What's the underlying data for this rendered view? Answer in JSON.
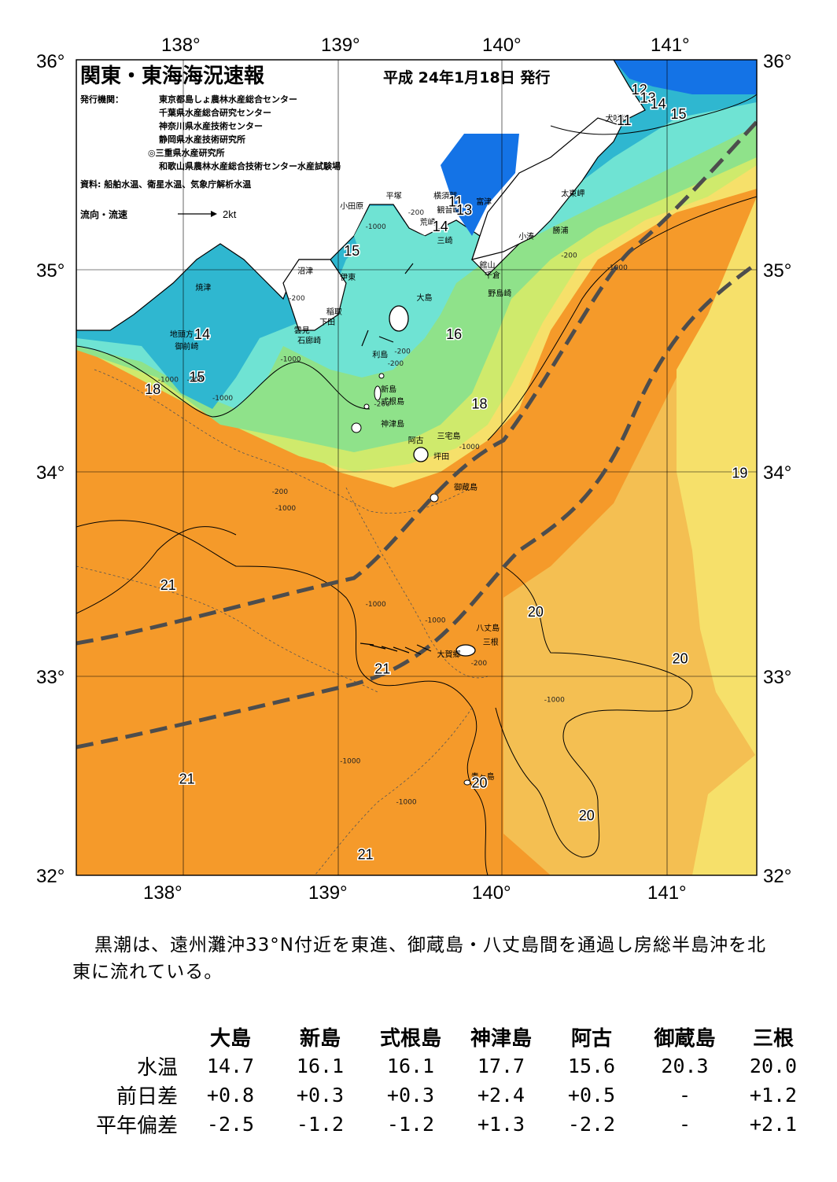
{
  "header": {
    "title": "関東・東海海況速報",
    "date": "平成 24年1月18日 発行",
    "issuer_label": "発行機関：",
    "issuers": [
      "東京都島しょ農林水産総合センター",
      "千葉県水産総合研究センター",
      "神奈川県水産技術センター",
      "静岡県水産技術研究所",
      "◎三重県水産研究所",
      "和歌山県農林水産総合技術センター水産試験場"
    ],
    "source": "資料: 船舶水温、衛星水温、気象庁解析水温",
    "flow_legend": "流向・流速",
    "flow_unit": "2kt"
  },
  "axes": {
    "lon_top": [
      "138°",
      "139°",
      "140°",
      "141°"
    ],
    "lon_bottom": [
      "138°",
      "139°",
      "140°",
      "141°"
    ],
    "lat_left": [
      "36°",
      "35°",
      "34°",
      "33°",
      "32°"
    ],
    "lat_right": [
      "36°",
      "35°",
      "34°",
      "33°",
      "32°"
    ],
    "lon_range": [
      137.5,
      141.5
    ],
    "lat_range": [
      32,
      36
    ]
  },
  "place_names": [
    {
      "name": "小田原",
      "lon": 139.05,
      "lat": 35.27
    },
    {
      "name": "平塚",
      "lon": 139.32,
      "lat": 35.32
    },
    {
      "name": "横須賀",
      "lon": 139.6,
      "lat": 35.32
    },
    {
      "name": "観音崎",
      "lon": 139.62,
      "lat": 35.25
    },
    {
      "name": "荒崎",
      "lon": 139.52,
      "lat": 35.19
    },
    {
      "name": "三崎",
      "lon": 139.62,
      "lat": 35.1
    },
    {
      "name": "富津",
      "lon": 139.85,
      "lat": 35.29
    },
    {
      "name": "太東岬",
      "lon": 140.35,
      "lat": 35.33
    },
    {
      "name": "勝浦",
      "lon": 140.3,
      "lat": 35.15
    },
    {
      "name": "小湊",
      "lon": 140.1,
      "lat": 35.12
    },
    {
      "name": "館山",
      "lon": 139.87,
      "lat": 34.98
    },
    {
      "name": "千倉",
      "lon": 139.9,
      "lat": 34.93
    },
    {
      "name": "野島崎",
      "lon": 139.92,
      "lat": 34.84
    },
    {
      "name": "犬吠埼",
      "lon": 140.61,
      "lat": 35.7
    },
    {
      "name": "沼津",
      "lon": 138.8,
      "lat": 34.95
    },
    {
      "name": "伊東",
      "lon": 139.05,
      "lat": 34.92
    },
    {
      "name": "焼津",
      "lon": 138.2,
      "lat": 34.87
    },
    {
      "name": "稲取",
      "lon": 138.97,
      "lat": 34.75
    },
    {
      "name": "下田",
      "lon": 138.93,
      "lat": 34.7
    },
    {
      "name": "雲見",
      "lon": 138.78,
      "lat": 34.66
    },
    {
      "name": "石廊崎",
      "lon": 138.8,
      "lat": 34.61
    },
    {
      "name": "地頭方",
      "lon": 138.05,
      "lat": 34.64
    },
    {
      "name": "御前崎",
      "lon": 138.08,
      "lat": 34.58
    },
    {
      "name": "大島",
      "lon": 139.5,
      "lat": 34.82
    },
    {
      "name": "利島",
      "lon": 139.24,
      "lat": 34.54
    },
    {
      "name": "新島",
      "lon": 139.29,
      "lat": 34.37
    },
    {
      "name": "式根島",
      "lon": 139.29,
      "lat": 34.31
    },
    {
      "name": "神津島",
      "lon": 139.29,
      "lat": 34.2
    },
    {
      "name": "三宅島",
      "lon": 139.62,
      "lat": 34.14
    },
    {
      "name": "阿古",
      "lon": 139.45,
      "lat": 34.12
    },
    {
      "name": "坪田",
      "lon": 139.6,
      "lat": 34.04
    },
    {
      "name": "御蔵島",
      "lon": 139.72,
      "lat": 33.89
    },
    {
      "name": "八丈島",
      "lon": 139.85,
      "lat": 33.2
    },
    {
      "name": "三根",
      "lon": 139.89,
      "lat": 33.13
    },
    {
      "name": "大賀郷",
      "lon": 139.62,
      "lat": 33.07
    },
    {
      "name": "青ヶ島",
      "lon": 139.82,
      "lat": 32.47
    }
  ],
  "isotherm_labels": [
    {
      "text": "12",
      "lon": 140.81,
      "lat": 35.83
    },
    {
      "text": "13",
      "lon": 140.86,
      "lat": 35.79
    },
    {
      "text": "14",
      "lon": 140.92,
      "lat": 35.76
    },
    {
      "text": "15",
      "lon": 141.04,
      "lat": 35.71
    },
    {
      "text": "11",
      "lon": 140.72,
      "lat": 35.68
    },
    {
      "text": "11",
      "lon": 139.73,
      "lat": 35.28
    },
    {
      "text": "13",
      "lon": 139.78,
      "lat": 35.24
    },
    {
      "text": "14",
      "lon": 139.64,
      "lat": 35.16
    },
    {
      "text": "15",
      "lon": 139.12,
      "lat": 35.04
    },
    {
      "text": "14",
      "lon": 138.24,
      "lat": 34.63
    },
    {
      "text": "16",
      "lon": 139.72,
      "lat": 34.63
    },
    {
      "text": "15",
      "lon": 138.21,
      "lat": 34.42
    },
    {
      "text": "18",
      "lon": 137.95,
      "lat": 34.36
    },
    {
      "text": "18",
      "lon": 139.87,
      "lat": 34.29
    },
    {
      "text": "19",
      "lon": 141.4,
      "lat": 33.95
    },
    {
      "text": "21",
      "lon": 138.04,
      "lat": 33.4
    },
    {
      "text": "20",
      "lon": 140.2,
      "lat": 33.27
    },
    {
      "text": "20",
      "lon": 141.05,
      "lat": 33.04
    },
    {
      "text": "21",
      "lon": 139.3,
      "lat": 32.99
    },
    {
      "text": "21",
      "lon": 138.15,
      "lat": 32.45
    },
    {
      "text": "20",
      "lon": 139.87,
      "lat": 32.43
    },
    {
      "text": "20",
      "lon": 140.5,
      "lat": 32.27
    },
    {
      "text": "21",
      "lon": 139.2,
      "lat": 32.08
    }
  ],
  "depth_labels": [
    {
      "text": "-200",
      "lon": 139.45,
      "lat": 35.24
    },
    {
      "text": "-1000",
      "lon": 139.2,
      "lat": 35.17
    },
    {
      "text": "-200",
      "lon": 140.35,
      "lat": 35.03
    },
    {
      "text": "-1000",
      "lon": 140.62,
      "lat": 34.97
    },
    {
      "text": "-200",
      "lon": 138.75,
      "lat": 34.82
    },
    {
      "text": "-200",
      "lon": 139.37,
      "lat": 34.56
    },
    {
      "text": "-200",
      "lon": 139.33,
      "lat": 34.5
    },
    {
      "text": "-1000",
      "lon": 138.7,
      "lat": 34.52
    },
    {
      "text": "-1000",
      "lon": 137.98,
      "lat": 34.42
    },
    {
      "text": "-200",
      "lon": 138.15,
      "lat": 34.42
    },
    {
      "text": "-1000",
      "lon": 138.3,
      "lat": 34.33
    },
    {
      "text": "-200",
      "lon": 139.25,
      "lat": 34.3
    },
    {
      "text": "-1000",
      "lon": 139.75,
      "lat": 34.09
    },
    {
      "text": "-200",
      "lon": 138.65,
      "lat": 33.87
    },
    {
      "text": "-1000",
      "lon": 138.67,
      "lat": 33.79
    },
    {
      "text": "-1000",
      "lon": 139.2,
      "lat": 33.32
    },
    {
      "text": "-1000",
      "lon": 139.55,
      "lat": 33.24
    },
    {
      "text": "-200",
      "lon": 139.82,
      "lat": 33.03
    },
    {
      "text": "-1000",
      "lon": 140.25,
      "lat": 32.85
    },
    {
      "text": "-1000",
      "lon": 139.05,
      "lat": 32.55
    },
    {
      "text": "-1000",
      "lon": 139.38,
      "lat": 32.35
    }
  ],
  "summary": "黒潮は、遠州灘沖33°N付近を東進、御蔵島・八丈島間を通過し房総半島沖を北東に流れている。",
  "table": {
    "columns": [
      "大島",
      "新島",
      "式根島",
      "神津島",
      "阿古",
      "御蔵島",
      "三根"
    ],
    "rows": [
      {
        "label": "水温",
        "values": [
          "14.7",
          "16.1",
          "16.1",
          "17.7",
          "15.6",
          "20.3",
          "20.0"
        ]
      },
      {
        "label": "前日差",
        "values": [
          "+0.8",
          "+0.3",
          "+0.3",
          "+2.4",
          "+0.5",
          "-",
          "+1.2"
        ]
      },
      {
        "label": "平年偏差",
        "values": [
          "-2.5",
          "-1.2",
          "-1.2",
          "+1.3",
          "-2.2",
          "-",
          "+2.1"
        ]
      }
    ]
  },
  "colors": {
    "water_coldest": "#1473e6",
    "water_cold": "#2fb7d0",
    "water_cool": "#6fe3d3",
    "water_mild": "#8fe28a",
    "water_warmish": "#cfea6c",
    "water_warm": "#f6e06a",
    "water_warmer": "#f4bf52",
    "water_warmest": "#f59a2a",
    "kuroshio_path": "#4d4d4d"
  }
}
